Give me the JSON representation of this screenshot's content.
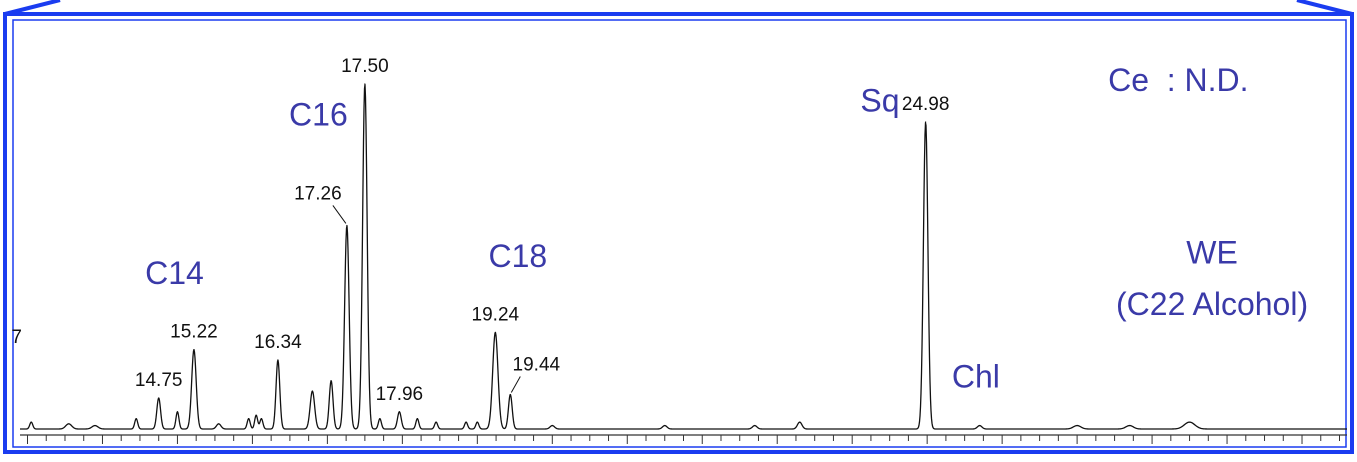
{
  "colors": {
    "frame": "#1a3cf0",
    "annotation": "#3a3aa8",
    "trace": "#111111",
    "axis": "#333333",
    "background": "#ffffff"
  },
  "chart_data": {
    "type": "line",
    "title": "",
    "xlabel": "",
    "ylabel": "",
    "xlim": [
      12.9,
      30.6
    ],
    "ylim": [
      0,
      100
    ],
    "grid": false,
    "legend": "none",
    "x_ticks": "minor ticks every 0.25, no numeric tick labels",
    "clipped_left_label": "7",
    "peaks": [
      {
        "rt": 13.05,
        "h": 2,
        "w": 0.02
      },
      {
        "rt": 13.55,
        "h": 1.5,
        "w": 0.04
      },
      {
        "rt": 13.9,
        "h": 1,
        "w": 0.04
      },
      {
        "rt": 14.45,
        "h": 3,
        "w": 0.02
      },
      {
        "rt": 14.75,
        "h": 9,
        "w": 0.025,
        "label": "14.75"
      },
      {
        "rt": 15.0,
        "h": 5,
        "w": 0.02
      },
      {
        "rt": 15.22,
        "h": 23,
        "w": 0.03,
        "label": "15.22"
      },
      {
        "rt": 15.55,
        "h": 1.5,
        "w": 0.03
      },
      {
        "rt": 15.95,
        "h": 3,
        "w": 0.02
      },
      {
        "rt": 16.05,
        "h": 4,
        "w": 0.02
      },
      {
        "rt": 16.12,
        "h": 3,
        "w": 0.02
      },
      {
        "rt": 16.34,
        "h": 20,
        "w": 0.025,
        "label": "16.34"
      },
      {
        "rt": 16.8,
        "h": 11,
        "w": 0.03
      },
      {
        "rt": 17.05,
        "h": 14,
        "w": 0.025
      },
      {
        "rt": 17.26,
        "h": 59,
        "w": 0.03,
        "label": "17.26"
      },
      {
        "rt": 17.5,
        "h": 100,
        "w": 0.03,
        "label": "17.50"
      },
      {
        "rt": 17.7,
        "h": 3,
        "w": 0.02
      },
      {
        "rt": 17.96,
        "h": 5,
        "w": 0.025,
        "label": "17.96"
      },
      {
        "rt": 18.2,
        "h": 3,
        "w": 0.02
      },
      {
        "rt": 18.45,
        "h": 2,
        "w": 0.02
      },
      {
        "rt": 18.85,
        "h": 2,
        "w": 0.02
      },
      {
        "rt": 19.0,
        "h": 2,
        "w": 0.02
      },
      {
        "rt": 19.24,
        "h": 28,
        "w": 0.035,
        "label": "19.24"
      },
      {
        "rt": 19.44,
        "h": 10,
        "w": 0.025,
        "label": "19.44"
      },
      {
        "rt": 20.0,
        "h": 1,
        "w": 0.03
      },
      {
        "rt": 21.5,
        "h": 1,
        "w": 0.03
      },
      {
        "rt": 22.7,
        "h": 1,
        "w": 0.03
      },
      {
        "rt": 23.3,
        "h": 2,
        "w": 0.03
      },
      {
        "rt": 24.98,
        "h": 89,
        "w": 0.03,
        "label": "24.98"
      },
      {
        "rt": 25.7,
        "h": 1,
        "w": 0.03
      },
      {
        "rt": 27.0,
        "h": 1,
        "w": 0.05
      },
      {
        "rt": 27.7,
        "h": 1,
        "w": 0.05
      },
      {
        "rt": 28.5,
        "h": 2,
        "w": 0.07
      }
    ],
    "annotations": [
      {
        "text": "C14",
        "rt": 14.96,
        "level": 42
      },
      {
        "text": "C16",
        "rt": 16.88,
        "level": 88
      },
      {
        "text": "C18",
        "rt": 19.54,
        "level": 47
      },
      {
        "text": "Sq",
        "rt": 24.37,
        "level": 92
      },
      {
        "text": "Chl",
        "rt": 25.65,
        "level": 12
      },
      {
        "text": "WE",
        "rt": 28.8,
        "level": 48
      },
      {
        "text": "(C22 Alcohol)",
        "rt": 28.8,
        "level": 33
      },
      {
        "text": "Ce  : N.D.",
        "rt": 28.35,
        "level": 98
      }
    ]
  }
}
